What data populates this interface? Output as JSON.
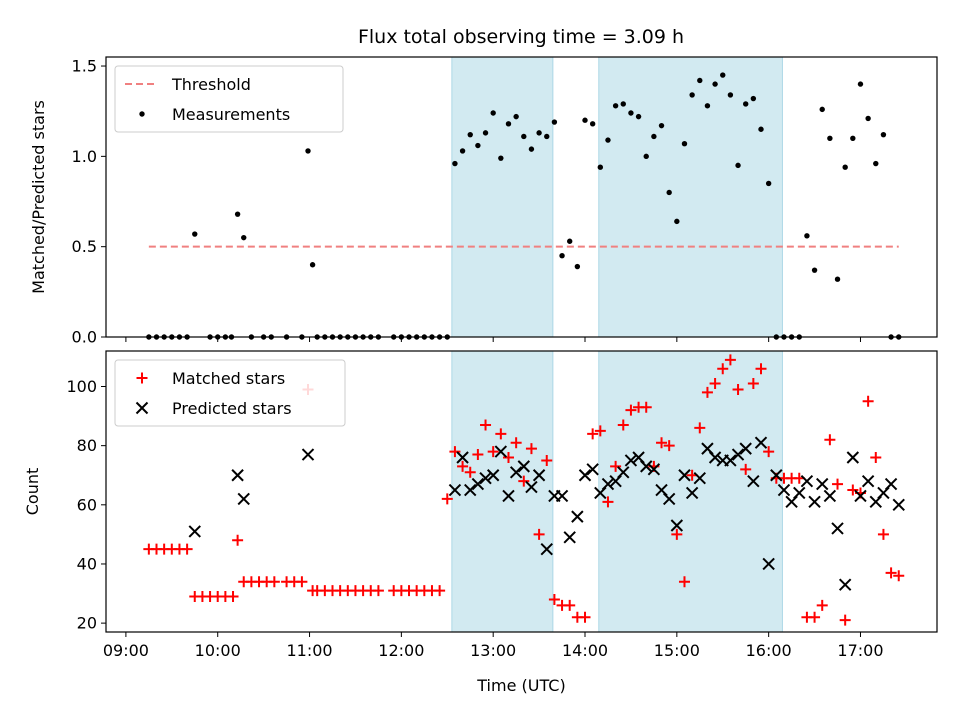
{
  "title": "Flux total observing time = 3.09 h",
  "colors": {
    "shade": "#add8e6",
    "threshold": "#f08080",
    "measurement": "#000000",
    "matched": "#ff0000",
    "predicted": "#000000"
  },
  "chart_data": [
    {
      "type": "scatter",
      "xlabel": "",
      "ylabel": "Matched/Predicted stars",
      "xlim": [
        "08:47",
        "17:50"
      ],
      "ylim": [
        0,
        1.55
      ],
      "yticks": [
        0.0,
        0.5,
        1.0,
        1.5
      ],
      "ytick_labels": [
        "0.0",
        "0.5",
        "1.0",
        "1.5"
      ],
      "grid": false,
      "legend_position": "top-left",
      "shaded_intervals": [
        [
          "12:33",
          "13:39"
        ],
        [
          "14:09",
          "16:09"
        ]
      ],
      "threshold": {
        "name": "Threshold",
        "value": 0.5,
        "x_range": [
          "09:15",
          "17:25"
        ]
      },
      "series": [
        {
          "name": "Measurements",
          "x": [
            "09:15",
            "09:20",
            "09:25",
            "09:30",
            "09:35",
            "09:40",
            "09:45",
            "09:55",
            "10:00",
            "10:05",
            "10:09",
            "10:13",
            "10:17",
            "10:22",
            "10:30",
            "10:35",
            "10:45",
            "10:55",
            "10:59",
            "11:02",
            "11:05",
            "11:10",
            "11:15",
            "11:20",
            "11:25",
            "11:30",
            "11:35",
            "11:40",
            "11:45",
            "11:55",
            "12:00",
            "12:05",
            "12:10",
            "12:15",
            "12:20",
            "12:25",
            "12:30",
            "12:35",
            "12:40",
            "12:45",
            "12:50",
            "12:55",
            "13:00",
            "13:05",
            "13:10",
            "13:15",
            "13:20",
            "13:25",
            "13:30",
            "13:35",
            "13:40",
            "13:45",
            "13:50",
            "13:55",
            "14:00",
            "14:05",
            "14:10",
            "14:15",
            "14:20",
            "14:25",
            "14:30",
            "14:35",
            "14:40",
            "14:45",
            "14:50",
            "14:55",
            "15:00",
            "15:05",
            "15:10",
            "15:15",
            "15:20",
            "15:25",
            "15:30",
            "15:35",
            "15:40",
            "15:45",
            "15:50",
            "15:55",
            "16:00",
            "16:05",
            "16:10",
            "16:15",
            "16:20",
            "16:25",
            "16:30",
            "16:35",
            "16:40",
            "16:45",
            "16:50",
            "16:55",
            "17:00",
            "17:05",
            "17:10",
            "17:15",
            "17:20",
            "17:25"
          ],
          "y": [
            0,
            0,
            0,
            0,
            0,
            0,
            0.57,
            0,
            0,
            0,
            0,
            0.68,
            0.55,
            0,
            0,
            0,
            0,
            0,
            1.03,
            0.4,
            0,
            0,
            0,
            0,
            0,
            0,
            0,
            0,
            0,
            0,
            0,
            0,
            0,
            0,
            0,
            0,
            0,
            0.96,
            1.03,
            1.12,
            1.06,
            1.13,
            1.24,
            0.99,
            1.18,
            1.22,
            1.11,
            1.04,
            1.13,
            1.11,
            1.19,
            0.45,
            0.53,
            0.39,
            1.2,
            1.18,
            0.94,
            1.09,
            1.28,
            1.29,
            1.24,
            1.22,
            1.0,
            1.11,
            1.17,
            0.8,
            0.64,
            1.07,
            1.34,
            1.42,
            1.28,
            1.4,
            1.45,
            1.34,
            0.95,
            1.29,
            1.32,
            1.15,
            0.85,
            0,
            0,
            0,
            0,
            0.56,
            0.37,
            1.26,
            1.1,
            0.32,
            0.94,
            1.1,
            1.4,
            1.21,
            0.96,
            1.12,
            0,
            0
          ]
        }
      ]
    },
    {
      "type": "scatter",
      "xlabel": "Time (UTC)",
      "ylabel": "Count",
      "xlim": [
        "08:47",
        "17:50"
      ],
      "ylim": [
        17,
        112
      ],
      "yticks": [
        20,
        40,
        60,
        80,
        100
      ],
      "ytick_labels": [
        "20",
        "40",
        "60",
        "80",
        "100"
      ],
      "xticks": [
        "09:00",
        "10:00",
        "11:00",
        "12:00",
        "13:00",
        "14:00",
        "15:00",
        "16:00",
        "17:00"
      ],
      "grid": false,
      "legend_position": "top-left",
      "shaded_intervals": [
        [
          "12:33",
          "13:39"
        ],
        [
          "14:09",
          "16:09"
        ]
      ],
      "series": [
        {
          "name": "Matched stars",
          "marker": "+",
          "x": [
            "09:15",
            "09:20",
            "09:25",
            "09:30",
            "09:35",
            "09:40",
            "09:45",
            "09:50",
            "09:55",
            "10:00",
            "10:05",
            "10:10",
            "10:13",
            "10:17",
            "10:22",
            "10:27",
            "10:32",
            "10:37",
            "10:45",
            "10:50",
            "10:55",
            "10:59",
            "11:02",
            "11:05",
            "11:10",
            "11:15",
            "11:20",
            "11:25",
            "11:30",
            "11:35",
            "11:40",
            "11:45",
            "11:55",
            "12:00",
            "12:05",
            "12:10",
            "12:15",
            "12:20",
            "12:25",
            "12:30",
            "12:35",
            "12:40",
            "12:45",
            "12:50",
            "12:55",
            "13:00",
            "13:05",
            "13:10",
            "13:15",
            "13:20",
            "13:25",
            "13:30",
            "13:35",
            "13:40",
            "13:45",
            "13:50",
            "13:55",
            "14:00",
            "14:05",
            "14:10",
            "14:15",
            "14:20",
            "14:25",
            "14:30",
            "14:35",
            "14:40",
            "14:45",
            "14:50",
            "14:55",
            "15:00",
            "15:05",
            "15:10",
            "15:15",
            "15:20",
            "15:25",
            "15:30",
            "15:35",
            "15:40",
            "15:45",
            "15:50",
            "15:55",
            "16:00",
            "16:05",
            "16:10",
            "16:15",
            "16:20",
            "16:25",
            "16:30",
            "16:35",
            "16:40",
            "16:45",
            "16:50",
            "16:55",
            "17:00",
            "17:05",
            "17:10",
            "17:15",
            "17:20",
            "17:25"
          ],
          "y": [
            45,
            45,
            45,
            45,
            45,
            45,
            29,
            29,
            29,
            29,
            29,
            29,
            48,
            34,
            34,
            34,
            34,
            34,
            34,
            34,
            34,
            99,
            31,
            31,
            31,
            31,
            31,
            31,
            31,
            31,
            31,
            31,
            31,
            31,
            31,
            31,
            31,
            31,
            31,
            62,
            78,
            73,
            71,
            77,
            87,
            78,
            84,
            76,
            81,
            68,
            79,
            50,
            75,
            28,
            26,
            26,
            22,
            22,
            84,
            85,
            61,
            73,
            87,
            92,
            93,
            93,
            73,
            81,
            80,
            50,
            34,
            70,
            86,
            98,
            101,
            106,
            109,
            99,
            72,
            101,
            106,
            78,
            69,
            69,
            69,
            69,
            22,
            22,
            26,
            82,
            67,
            21,
            65,
            64,
            95,
            76,
            50,
            37,
            36
          ],
          "note": ""
        },
        {
          "name": "Predicted stars",
          "marker": "x",
          "x": [
            "09:45",
            "10:13",
            "10:17",
            "10:59",
            "12:35",
            "12:40",
            "12:45",
            "12:50",
            "12:55",
            "13:00",
            "13:05",
            "13:10",
            "13:15",
            "13:20",
            "13:25",
            "13:30",
            "13:35",
            "13:40",
            "13:45",
            "13:50",
            "13:55",
            "14:00",
            "14:05",
            "14:10",
            "14:15",
            "14:20",
            "14:25",
            "14:30",
            "14:35",
            "14:40",
            "14:45",
            "14:50",
            "14:55",
            "15:00",
            "15:05",
            "15:10",
            "15:15",
            "15:20",
            "15:25",
            "15:30",
            "15:35",
            "15:40",
            "15:45",
            "15:50",
            "15:55",
            "16:00",
            "16:05",
            "16:10",
            "16:15",
            "16:20",
            "16:25",
            "16:30",
            "16:35",
            "16:40",
            "16:45",
            "16:50",
            "16:55",
            "17:00",
            "17:05",
            "17:10",
            "17:15",
            "17:20",
            "17:25"
          ],
          "y": [
            51,
            70,
            62,
            77,
            65,
            76,
            65,
            67,
            69,
            70,
            78,
            63,
            71,
            73,
            66,
            70,
            45,
            63,
            63,
            49,
            56,
            70,
            72,
            64,
            67,
            68,
            71,
            75,
            76,
            73,
            72,
            65,
            62,
            53,
            70,
            64,
            69,
            79,
            76,
            75,
            75,
            77,
            79,
            68,
            81,
            40,
            70,
            65,
            61,
            64,
            68,
            61,
            67,
            63,
            52,
            33,
            76,
            63,
            68,
            61,
            64,
            67,
            60
          ]
        }
      ]
    }
  ]
}
